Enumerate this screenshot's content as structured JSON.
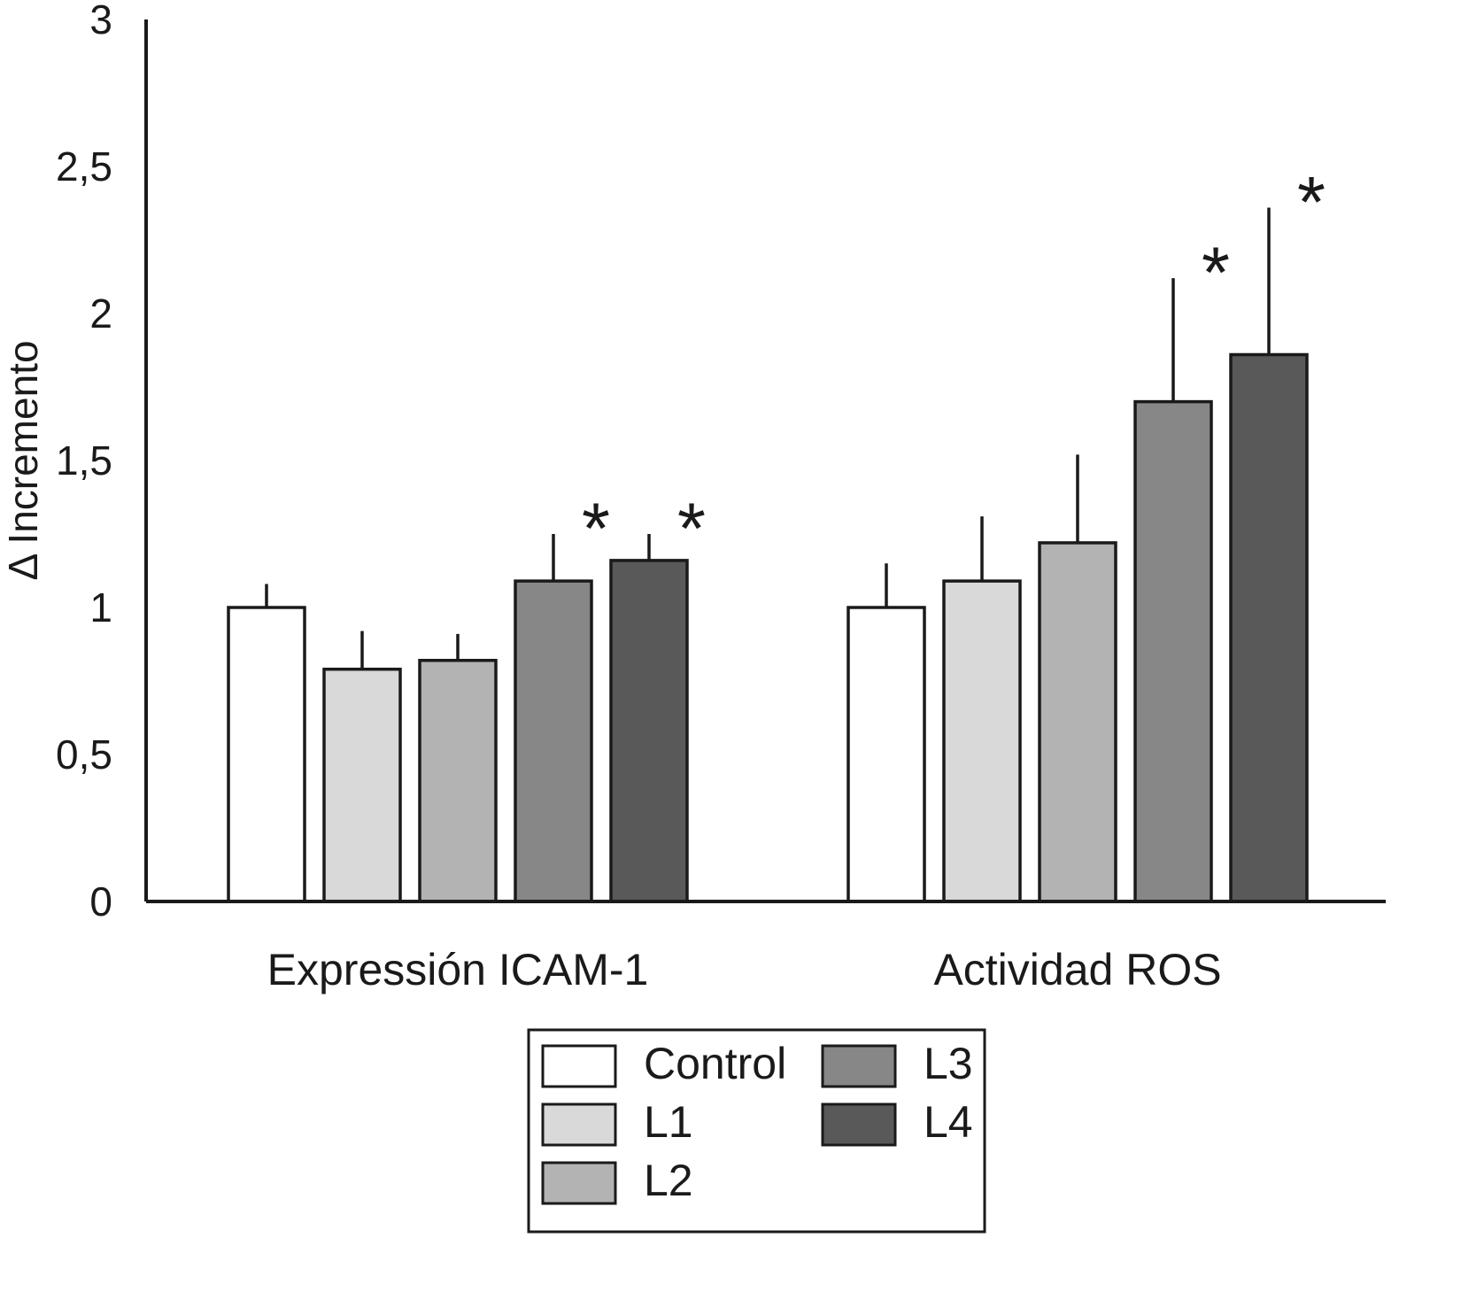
{
  "chart_data": {
    "type": "bar",
    "title": "",
    "ylabel": "Δ Incremento",
    "xlabel": "",
    "ylim": [
      0,
      3
    ],
    "yticks": [
      0,
      0.5,
      1,
      1.5,
      2,
      2.5,
      3
    ],
    "ytick_labels": [
      "0",
      "0,5",
      "1",
      "1,5",
      "2",
      "2,5",
      "3"
    ],
    "categories": [
      "Expressión ICAM-1",
      "Actividad ROS"
    ],
    "series": [
      {
        "name": "Control",
        "color": "#ffffff",
        "values": [
          1.0,
          1.0
        ],
        "errors": [
          0.08,
          0.15
        ],
        "significant": [
          false,
          false
        ]
      },
      {
        "name": "L1",
        "color": "#d9d9d9",
        "values": [
          0.79,
          1.09
        ],
        "errors": [
          0.13,
          0.22
        ],
        "significant": [
          false,
          false
        ]
      },
      {
        "name": "L2",
        "color": "#b3b3b3",
        "values": [
          0.82,
          1.22
        ],
        "errors": [
          0.09,
          0.3
        ],
        "significant": [
          false,
          false
        ]
      },
      {
        "name": "L3",
        "color": "#878787",
        "values": [
          1.09,
          1.7
        ],
        "errors": [
          0.16,
          0.42
        ],
        "significant": [
          true,
          true
        ]
      },
      {
        "name": "L4",
        "color": "#595959",
        "values": [
          1.16,
          1.86
        ],
        "errors": [
          0.09,
          0.5
        ],
        "significant": [
          true,
          true
        ]
      }
    ],
    "significance_marker": "*",
    "error_bars": "upper",
    "grid": false,
    "legend_position": "bottom",
    "bar_border_color": "#1a1a1a"
  }
}
